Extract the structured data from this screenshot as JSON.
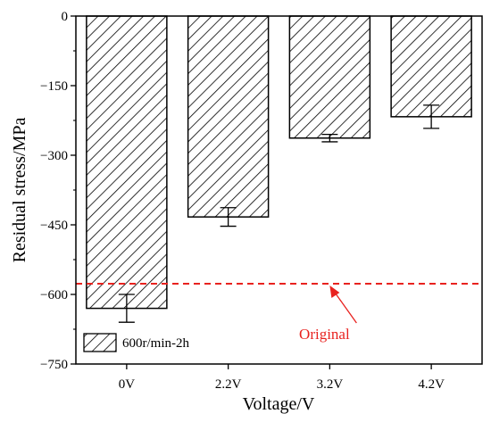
{
  "chart_data": {
    "type": "bar",
    "categories": [
      "0V",
      "2.2V",
      "3.2V",
      "4.2V"
    ],
    "series": [
      {
        "name": "600r/min-2h",
        "values": [
          -630,
          -433,
          -263,
          -217
        ],
        "error": [
          30,
          20,
          8,
          25
        ]
      }
    ],
    "xlabel": "Voltage/V",
    "ylabel": "Residual stress/MPa",
    "ylim": [
      -750,
      0
    ],
    "yticks": [
      0,
      -150,
      -300,
      -450,
      -600,
      -750
    ],
    "bar_pattern": "diagonal-hatch",
    "grid": false,
    "legend": {
      "position": "bottom-left",
      "entries": [
        "600r/min-2h"
      ]
    },
    "reference_line": {
      "y": -577,
      "style": "dashed",
      "color": "#e8221f",
      "label": "Original"
    }
  }
}
